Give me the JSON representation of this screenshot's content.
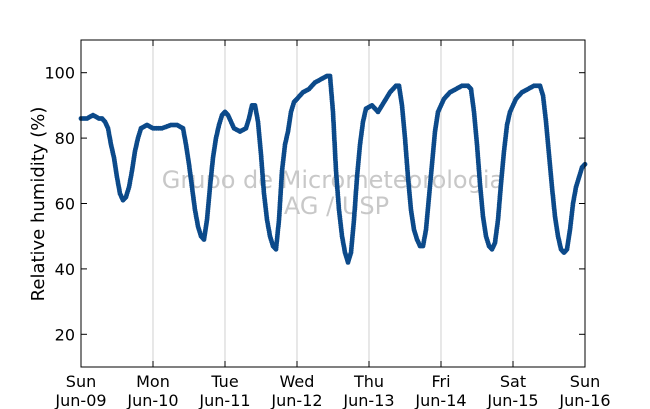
{
  "chart_data": {
    "type": "scatter",
    "title": "",
    "xlabel": "",
    "ylabel": "Relative humidity (%)",
    "ylim": [
      10,
      110
    ],
    "xlim": [
      "2013-06-09",
      "2013-06-16"
    ],
    "yticks": [
      20,
      40,
      60,
      80,
      100
    ],
    "xticks": [
      {
        "day": "Sun",
        "date": "Jun-09"
      },
      {
        "day": "Mon",
        "date": "Jun-10"
      },
      {
        "day": "Tue",
        "date": "Jun-11"
      },
      {
        "day": "Wed",
        "date": "Jun-12"
      },
      {
        "day": "Thu",
        "date": "Jun-13"
      },
      {
        "day": "Fri",
        "date": "Jun-14"
      },
      {
        "day": "Sat",
        "date": "Jun-15"
      },
      {
        "day": "Sun",
        "date": "Jun-16"
      }
    ],
    "grid": "vertical",
    "marker_color": "#0c4a8a",
    "watermark": [
      "Grupo de Micrometeorologia",
      "IAG / USP"
    ],
    "series": [
      {
        "points": [
          [
            "2013-06-09T00:00",
            86
          ],
          [
            "2013-06-09T02:00",
            86
          ],
          [
            "2013-06-09T04:00",
            87
          ],
          [
            "2013-06-09T06:00",
            86
          ],
          [
            "2013-06-09T07:00",
            86
          ],
          [
            "2013-06-09T08:00",
            85
          ],
          [
            "2013-06-09T09:00",
            83
          ],
          [
            "2013-06-09T10:00",
            78
          ],
          [
            "2013-06-09T11:00",
            74
          ],
          [
            "2013-06-09T12:00",
            68
          ],
          [
            "2013-06-09T13:00",
            63
          ],
          [
            "2013-06-09T14:00",
            61
          ],
          [
            "2013-06-09T15:00",
            62
          ],
          [
            "2013-06-09T16:00",
            65
          ],
          [
            "2013-06-09T17:00",
            70
          ],
          [
            "2013-06-09T18:00",
            76
          ],
          [
            "2013-06-09T19:00",
            80
          ],
          [
            "2013-06-09T20:00",
            83
          ],
          [
            "2013-06-09T22:00",
            84
          ],
          [
            "2013-06-10T00:00",
            83
          ],
          [
            "2013-06-10T03:00",
            83
          ],
          [
            "2013-06-10T06:00",
            84
          ],
          [
            "2013-06-10T08:00",
            84
          ],
          [
            "2013-06-10T10:00",
            83
          ],
          [
            "2013-06-10T11:00",
            78
          ],
          [
            "2013-06-10T12:00",
            72
          ],
          [
            "2013-06-10T13:00",
            65
          ],
          [
            "2013-06-10T14:00",
            58
          ],
          [
            "2013-06-10T15:00",
            53
          ],
          [
            "2013-06-10T16:00",
            50
          ],
          [
            "2013-06-10T17:00",
            49
          ],
          [
            "2013-06-10T18:00",
            55
          ],
          [
            "2013-06-10T19:00",
            65
          ],
          [
            "2013-06-10T20:00",
            74
          ],
          [
            "2013-06-10T21:00",
            80
          ],
          [
            "2013-06-10T22:00",
            84
          ],
          [
            "2013-06-10T23:00",
            87
          ],
          [
            "2013-06-11T00:00",
            88
          ],
          [
            "2013-06-11T01:00",
            87
          ],
          [
            "2013-06-11T03:00",
            83
          ],
          [
            "2013-06-11T05:00",
            82
          ],
          [
            "2013-06-11T07:00",
            83
          ],
          [
            "2013-06-11T08:00",
            86
          ],
          [
            "2013-06-11T09:00",
            90
          ],
          [
            "2013-06-11T10:00",
            90
          ],
          [
            "2013-06-11T11:00",
            85
          ],
          [
            "2013-06-11T12:00",
            75
          ],
          [
            "2013-06-11T13:00",
            63
          ],
          [
            "2013-06-11T14:00",
            55
          ],
          [
            "2013-06-11T15:00",
            50
          ],
          [
            "2013-06-11T16:00",
            47
          ],
          [
            "2013-06-11T17:00",
            46
          ],
          [
            "2013-06-11T18:00",
            55
          ],
          [
            "2013-06-11T19:00",
            70
          ],
          [
            "2013-06-11T20:00",
            78
          ],
          [
            "2013-06-11T21:00",
            82
          ],
          [
            "2013-06-11T22:00",
            88
          ],
          [
            "2013-06-11T23:00",
            91
          ],
          [
            "2013-06-12T00:00",
            92
          ],
          [
            "2013-06-12T02:00",
            94
          ],
          [
            "2013-06-12T04:00",
            95
          ],
          [
            "2013-06-12T06:00",
            97
          ],
          [
            "2013-06-12T08:00",
            98
          ],
          [
            "2013-06-12T10:00",
            99
          ],
          [
            "2013-06-12T11:00",
            99
          ],
          [
            "2013-06-12T12:00",
            88
          ],
          [
            "2013-06-12T13:00",
            70
          ],
          [
            "2013-06-12T14:00",
            58
          ],
          [
            "2013-06-12T15:00",
            50
          ],
          [
            "2013-06-12T16:00",
            45
          ],
          [
            "2013-06-12T17:00",
            42
          ],
          [
            "2013-06-12T18:00",
            45
          ],
          [
            "2013-06-12T19:00",
            55
          ],
          [
            "2013-06-12T20:00",
            68
          ],
          [
            "2013-06-12T21:00",
            78
          ],
          [
            "2013-06-12T22:00",
            85
          ],
          [
            "2013-06-12T23:00",
            89
          ],
          [
            "2013-06-13T01:00",
            90
          ],
          [
            "2013-06-13T03:00",
            88
          ],
          [
            "2013-06-13T05:00",
            91
          ],
          [
            "2013-06-13T07:00",
            94
          ],
          [
            "2013-06-13T09:00",
            96
          ],
          [
            "2013-06-13T10:00",
            96
          ],
          [
            "2013-06-13T11:00",
            90
          ],
          [
            "2013-06-13T12:00",
            80
          ],
          [
            "2013-06-13T13:00",
            68
          ],
          [
            "2013-06-13T14:00",
            58
          ],
          [
            "2013-06-13T15:00",
            52
          ],
          [
            "2013-06-13T16:00",
            49
          ],
          [
            "2013-06-13T17:00",
            47
          ],
          [
            "2013-06-13T18:00",
            47
          ],
          [
            "2013-06-13T19:00",
            52
          ],
          [
            "2013-06-13T20:00",
            62
          ],
          [
            "2013-06-13T21:00",
            72
          ],
          [
            "2013-06-13T22:00",
            82
          ],
          [
            "2013-06-13T23:00",
            88
          ],
          [
            "2013-06-14T01:00",
            92
          ],
          [
            "2013-06-14T03:00",
            94
          ],
          [
            "2013-06-14T05:00",
            95
          ],
          [
            "2013-06-14T07:00",
            96
          ],
          [
            "2013-06-14T09:00",
            96
          ],
          [
            "2013-06-14T10:00",
            95
          ],
          [
            "2013-06-14T11:00",
            88
          ],
          [
            "2013-06-14T12:00",
            78
          ],
          [
            "2013-06-14T13:00",
            66
          ],
          [
            "2013-06-14T14:00",
            56
          ],
          [
            "2013-06-14T15:00",
            50
          ],
          [
            "2013-06-14T16:00",
            47
          ],
          [
            "2013-06-14T17:00",
            46
          ],
          [
            "2013-06-14T18:00",
            48
          ],
          [
            "2013-06-14T19:00",
            55
          ],
          [
            "2013-06-14T20:00",
            66
          ],
          [
            "2013-06-14T21:00",
            76
          ],
          [
            "2013-06-14T22:00",
            84
          ],
          [
            "2013-06-14T23:00",
            88
          ],
          [
            "2013-06-15T01:00",
            92
          ],
          [
            "2013-06-15T03:00",
            94
          ],
          [
            "2013-06-15T05:00",
            95
          ],
          [
            "2013-06-15T07:00",
            96
          ],
          [
            "2013-06-15T09:00",
            96
          ],
          [
            "2013-06-15T10:00",
            93
          ],
          [
            "2013-06-15T11:00",
            85
          ],
          [
            "2013-06-15T12:00",
            75
          ],
          [
            "2013-06-15T13:00",
            65
          ],
          [
            "2013-06-15T14:00",
            56
          ],
          [
            "2013-06-15T15:00",
            50
          ],
          [
            "2013-06-15T16:00",
            46
          ],
          [
            "2013-06-15T17:00",
            45
          ],
          [
            "2013-06-15T18:00",
            46
          ],
          [
            "2013-06-15T19:00",
            52
          ],
          [
            "2013-06-15T20:00",
            60
          ],
          [
            "2013-06-15T21:00",
            65
          ],
          [
            "2013-06-15T22:00",
            68
          ],
          [
            "2013-06-15T23:00",
            71
          ],
          [
            "2013-06-16T00:00",
            72
          ]
        ]
      }
    ]
  }
}
